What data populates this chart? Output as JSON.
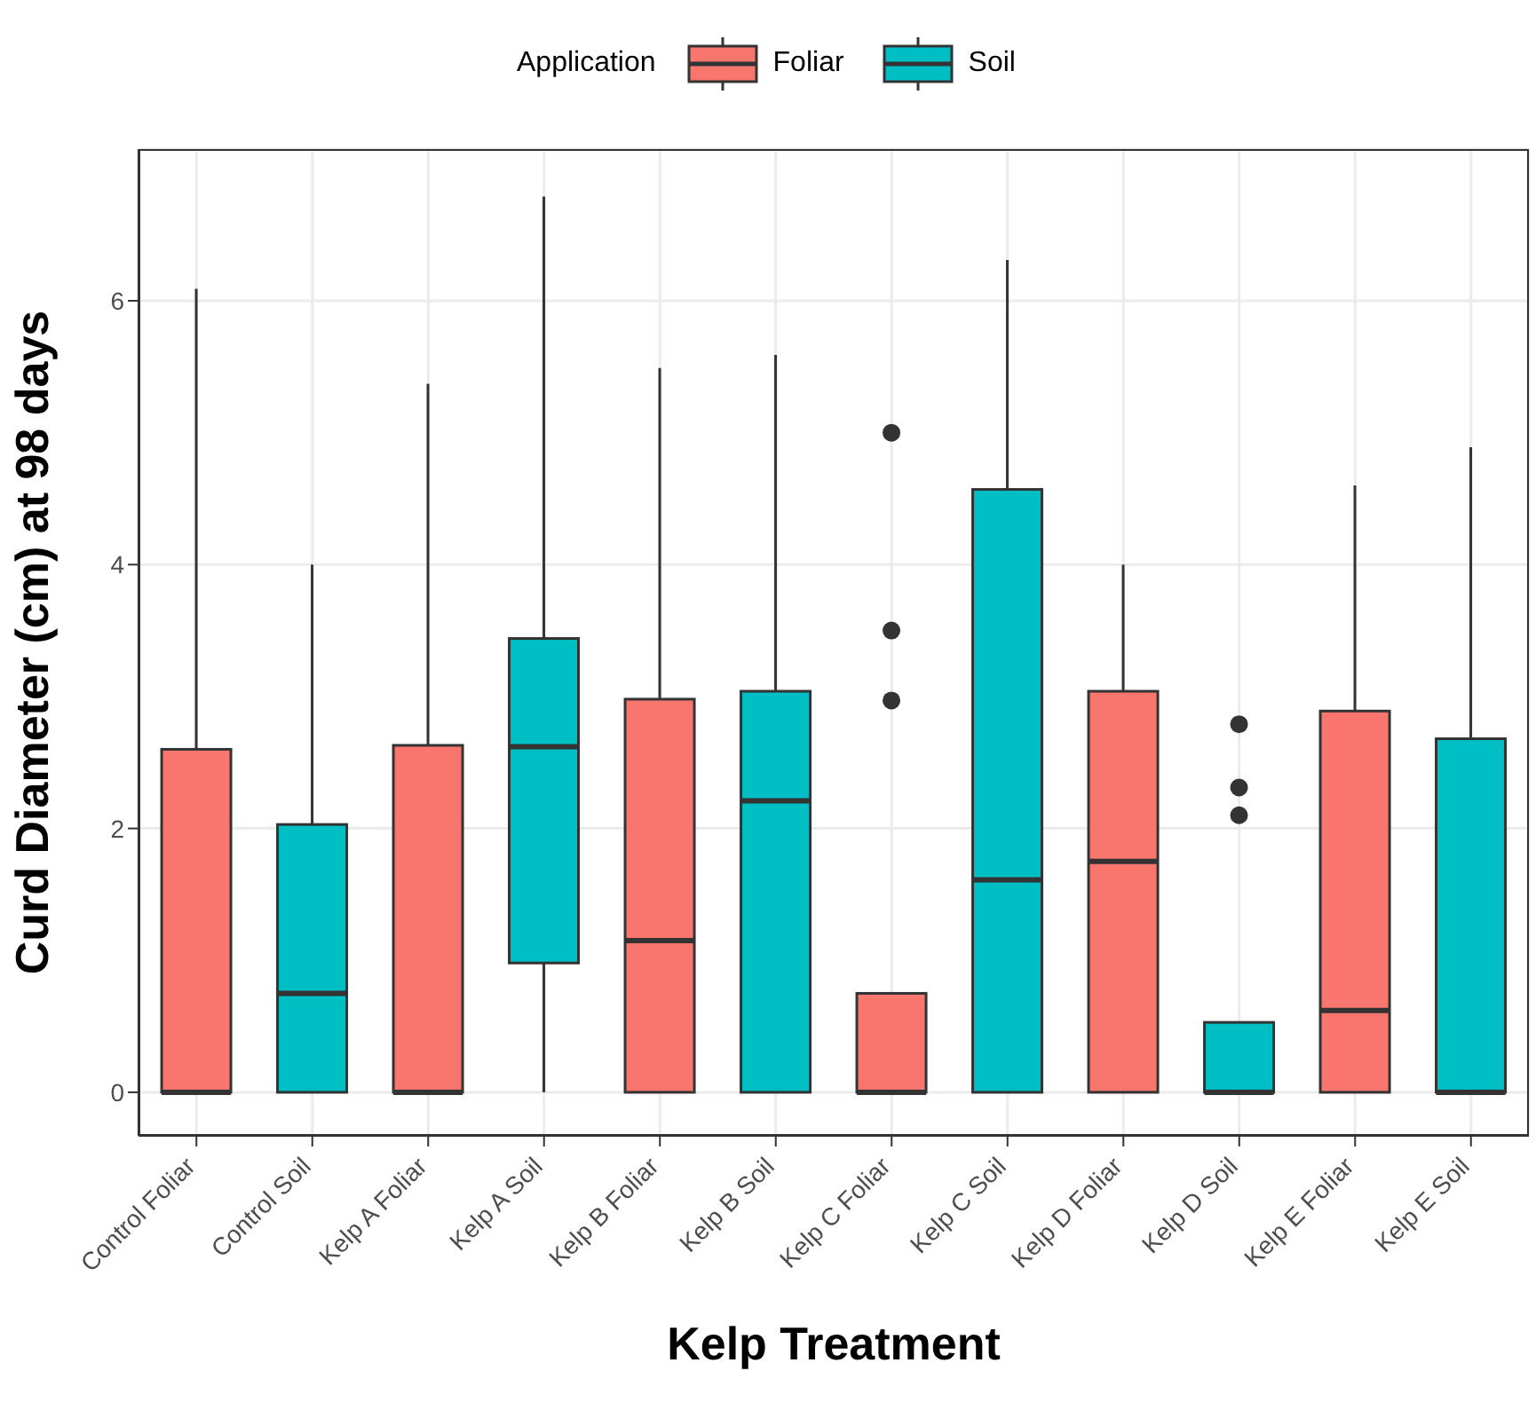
{
  "chart_data": {
    "type": "box",
    "xlabel": "Kelp Treatment",
    "ylabel": "Curd Diameter (cm) at 98 days",
    "legend_title": "Application",
    "legend": "top",
    "grid": true,
    "categories": [
      "Control Foliar",
      "Control Soil",
      "Kelp A Foliar",
      "Kelp A Soil",
      "Kelp B Foliar",
      "Kelp B Soil",
      "Kelp C Foliar",
      "Kelp C Soil",
      "Kelp D Foliar",
      "Kelp D Soil",
      "Kelp E Foliar",
      "Kelp E Soil"
    ],
    "ylim": [
      -0.33,
      7.15
    ],
    "yticks": [
      0,
      2,
      4,
      6
    ],
    "series": [
      {
        "name": "Foliar",
        "color": "#f8766d",
        "boxes": [
          {
            "low": 0,
            "q1": 0,
            "median": 0,
            "q3": 2.6,
            "high": 6.09
          },
          null,
          {
            "low": 0,
            "q1": 0,
            "median": 0,
            "q3": 2.63,
            "high": 5.37
          },
          null,
          {
            "low": 0,
            "q1": 0,
            "median": 1.15,
            "q3": 2.98,
            "high": 5.49
          },
          null,
          {
            "low": 0,
            "q1": 0,
            "median": 0,
            "q3": 0.75,
            "high": 0.75,
            "outliers": [
              2.97,
              3.5,
              5.0
            ]
          },
          null,
          {
            "low": 0,
            "q1": 0,
            "median": 1.75,
            "q3": 3.04,
            "high": 4.0
          },
          null,
          {
            "low": 0,
            "q1": 0,
            "median": 0.62,
            "q3": 2.89,
            "high": 4.6
          },
          null
        ]
      },
      {
        "name": "Soil",
        "color": "#00bfc4",
        "boxes": [
          null,
          {
            "low": 0,
            "q1": 0,
            "median": 0.75,
            "q3": 2.03,
            "high": 4.0
          },
          null,
          {
            "low": 0,
            "q1": 0.98,
            "median": 2.62,
            "q3": 3.44,
            "high": 6.79
          },
          null,
          {
            "low": 0,
            "q1": 0,
            "median": 2.21,
            "q3": 3.04,
            "high": 5.59
          },
          null,
          {
            "low": 0,
            "q1": 0,
            "median": 1.61,
            "q3": 4.57,
            "high": 6.31
          },
          null,
          {
            "low": 0,
            "q1": 0,
            "median": 0,
            "q3": 0.53,
            "high": 0.53,
            "outliers": [
              2.1,
              2.31,
              2.79
            ]
          },
          null,
          {
            "low": 0,
            "q1": 0,
            "median": 0,
            "q3": 2.68,
            "high": 4.89
          }
        ]
      }
    ]
  }
}
